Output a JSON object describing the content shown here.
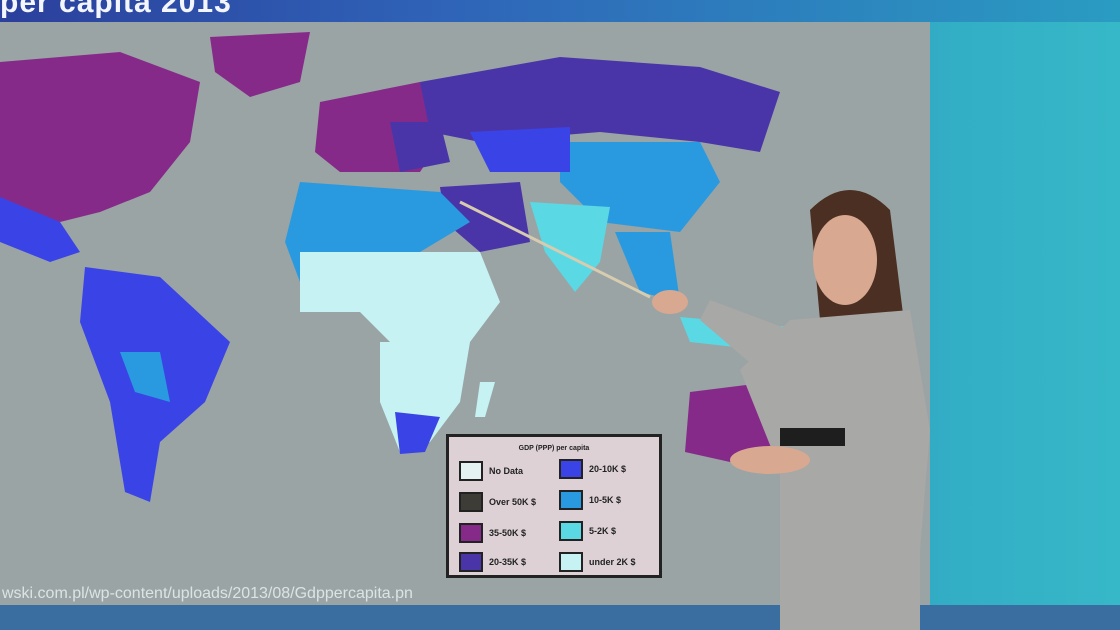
{
  "slide": {
    "title": "per capita 2013",
    "source_url": "wski.com.pl/wp-content/uploads/2013/08/Gdppercapita.pn"
  },
  "legend": {
    "title": "GDP (PPP) per capita",
    "items": [
      {
        "label": "No Data",
        "color": "#e4f2f2"
      },
      {
        "label": "Over 50K $",
        "color": "#3e3c36"
      },
      {
        "label": "35-50K $",
        "color": "#862a8a"
      },
      {
        "label": "20-35K $",
        "color": "#4a35a8"
      },
      {
        "label": "20-10K $",
        "color": "#3a44e6"
      },
      {
        "label": "10-5K $",
        "color": "#2a9ae0"
      },
      {
        "label": "5-2K $",
        "color": "#5ad8e4"
      },
      {
        "label": "under 2K $",
        "color": "#c6f2f4"
      }
    ]
  }
}
